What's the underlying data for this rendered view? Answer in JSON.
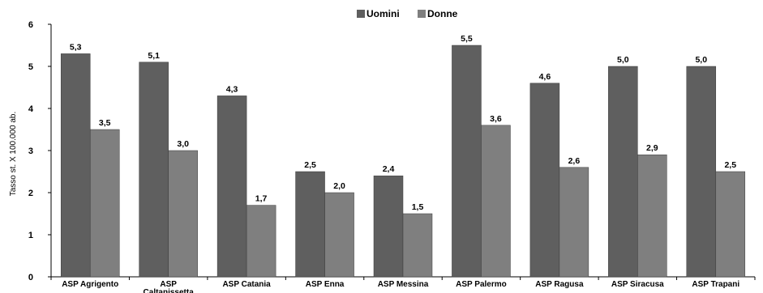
{
  "chart_data": {
    "type": "bar",
    "title": "",
    "xlabel": "",
    "ylabel": "Tasso st. X 100.000 ab.",
    "ylim": [
      0,
      6
    ],
    "yticks": [
      0,
      1,
      2,
      3,
      4,
      5,
      6
    ],
    "grid": false,
    "legend_position": "top-center",
    "categories": [
      [
        "ASP Agrigento"
      ],
      [
        "ASP",
        "Caltanissetta"
      ],
      [
        "ASP Catania"
      ],
      [
        "ASP Enna"
      ],
      [
        "ASP Messina"
      ],
      [
        "ASP Palermo"
      ],
      [
        "ASP Ragusa"
      ],
      [
        "ASP Siracusa"
      ],
      [
        "ASP Trapani"
      ]
    ],
    "series": [
      {
        "name": "Uomini",
        "color": "#5f5f5f",
        "values": [
          5.3,
          5.1,
          4.3,
          2.5,
          2.4,
          5.5,
          4.6,
          5.0,
          5.0
        ],
        "labels": [
          "5,3",
          "5,1",
          "4,3",
          "2,5",
          "2,4",
          "5,5",
          "4,6",
          "5,0",
          "5,0"
        ]
      },
      {
        "name": "Donne",
        "color": "#7f7f7f",
        "values": [
          3.5,
          3.0,
          1.7,
          2.0,
          1.5,
          3.6,
          2.6,
          2.9,
          2.5
        ],
        "labels": [
          "3,5",
          "3,0",
          "1,7",
          "2,0",
          "1,5",
          "3,6",
          "2,6",
          "2,9",
          "2,5"
        ]
      }
    ]
  }
}
